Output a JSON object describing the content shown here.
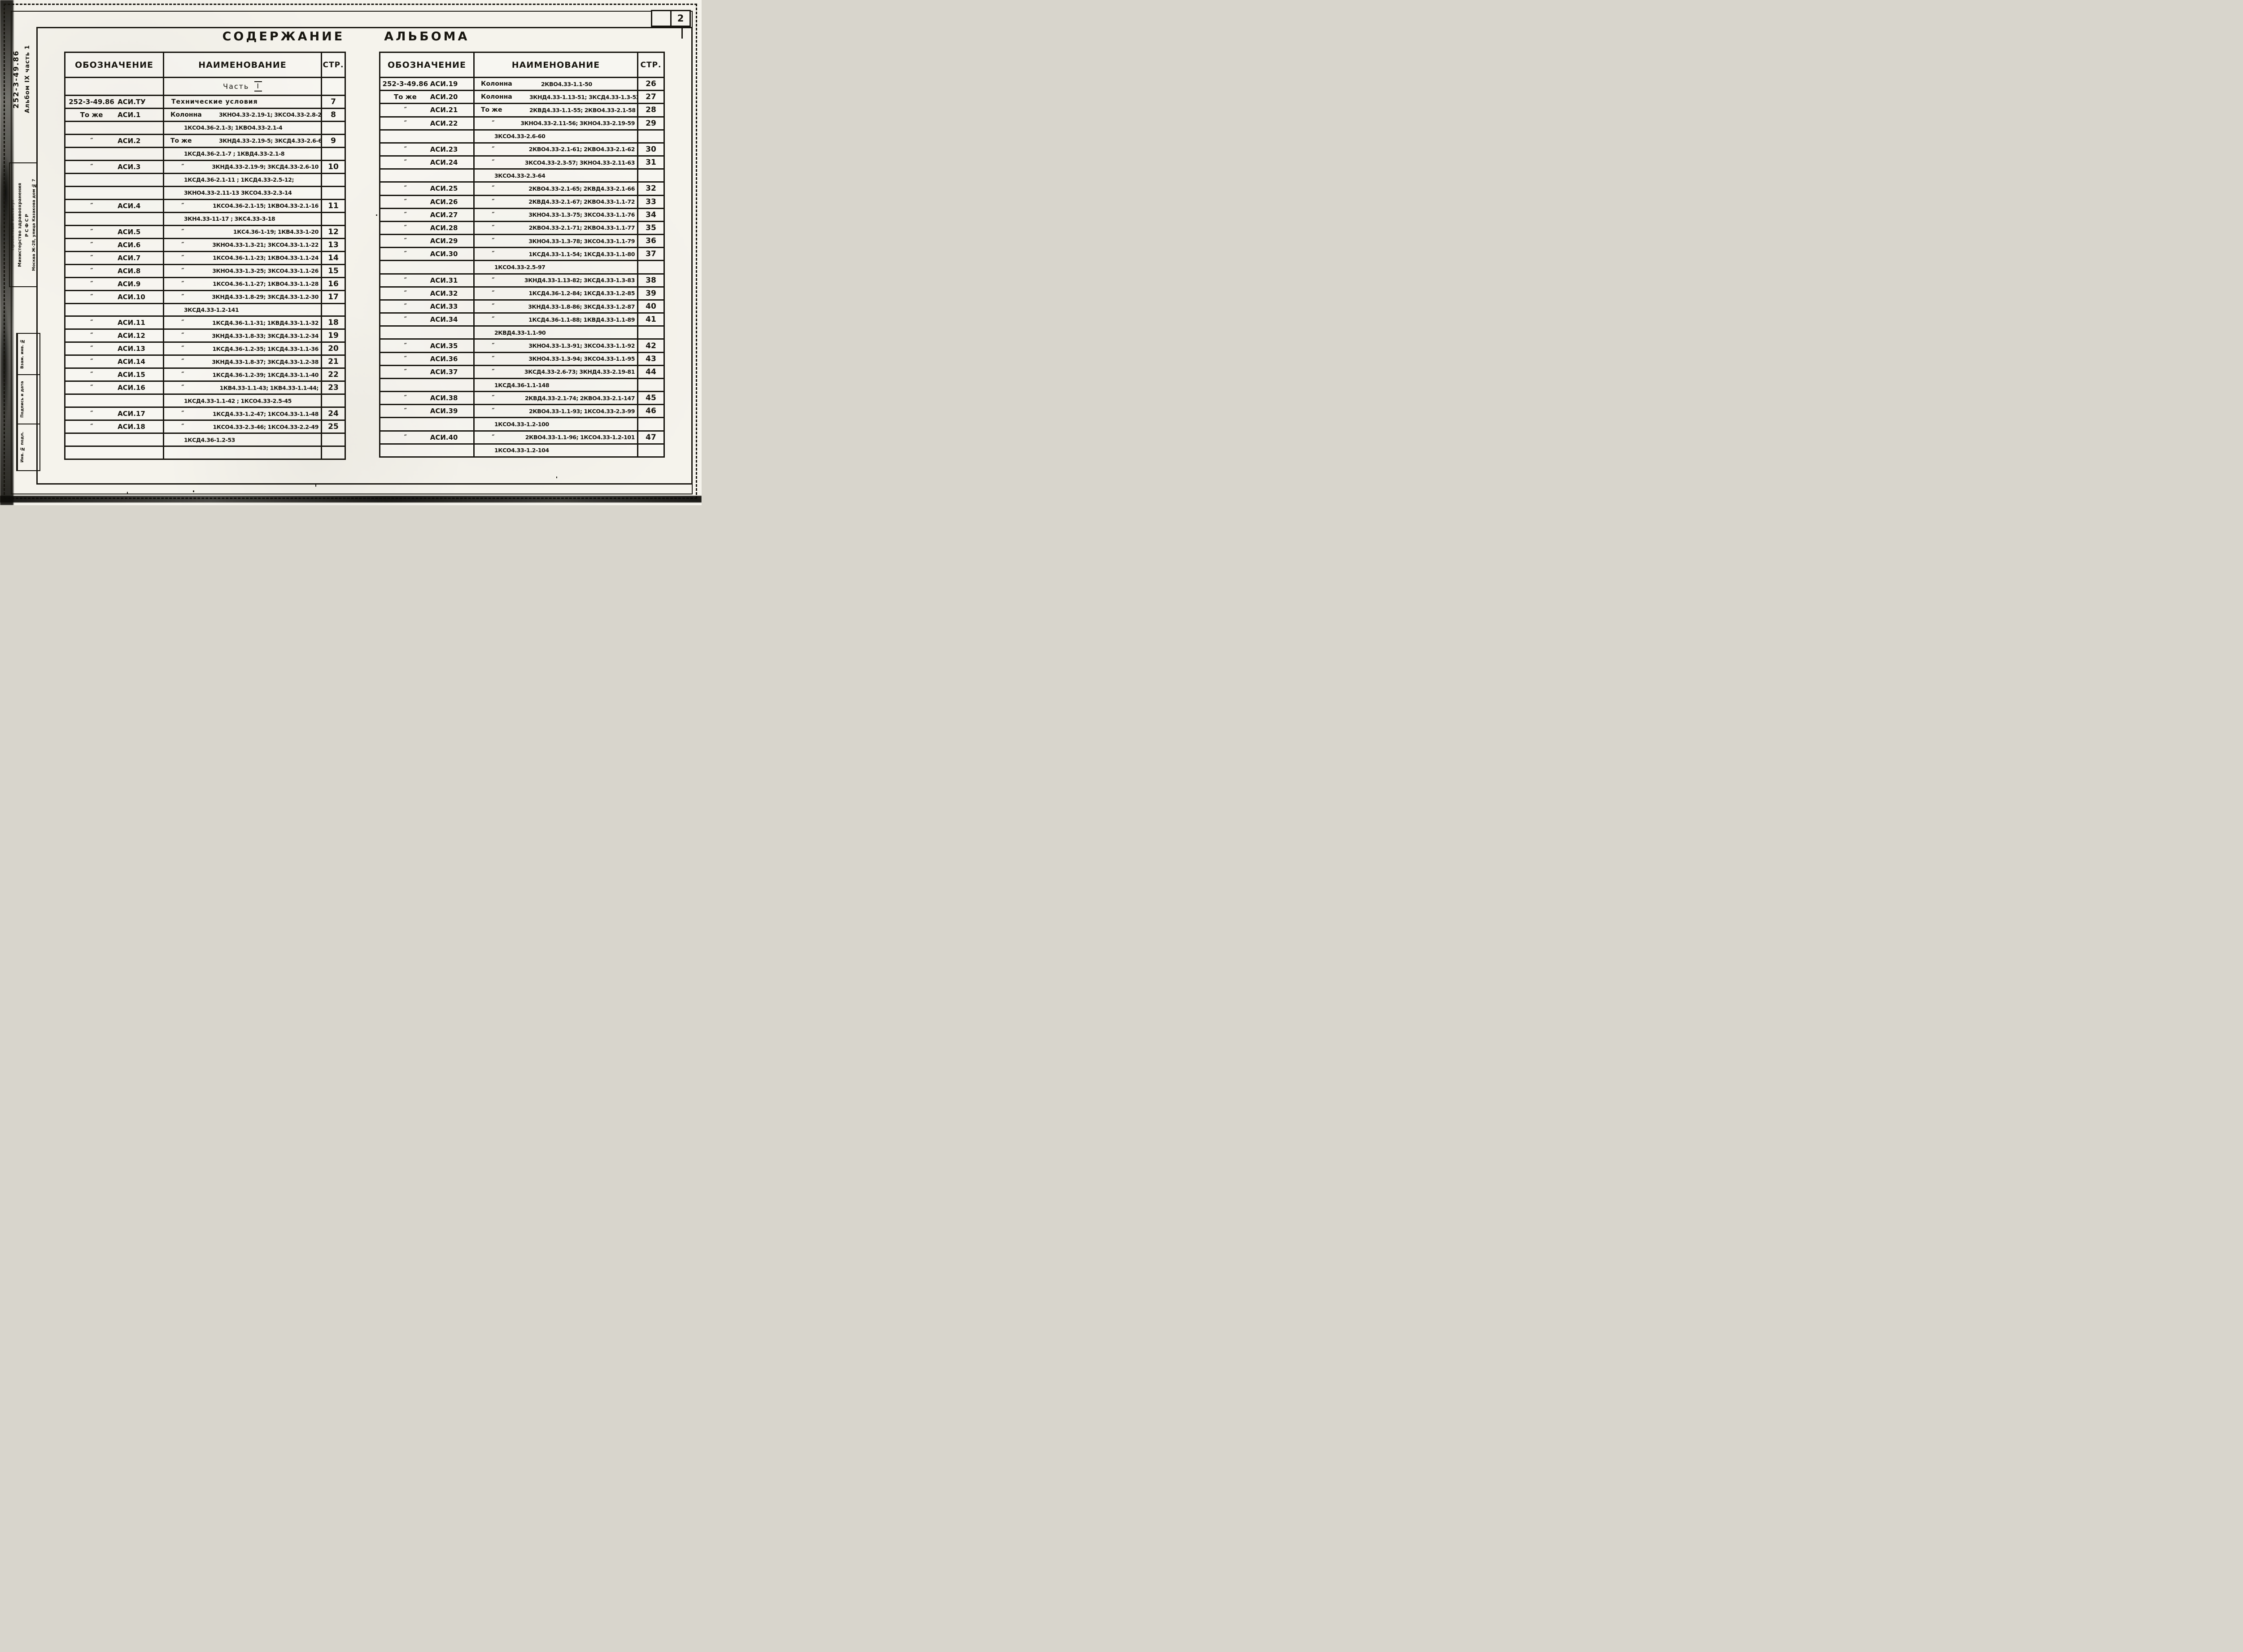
{
  "sheet": {
    "number": "2",
    "title": [
      "Содержание",
      "альбома"
    ]
  },
  "margin": {
    "doc_code": "252-3-49.86",
    "album": "Альбом IX часть 1",
    "institute": "Проектный институт",
    "ministry_line1": "Министерство здравоохранения",
    "ministry_line2": "РСФСР",
    "address": "Москва Ж-28, улица Казакова дом № 7",
    "stamps": [
      "Взам. инв. №",
      "Подпись и дата",
      "Инв. № подл."
    ]
  },
  "tables": {
    "left": {
      "headers": [
        "Обозначение",
        "Наименование",
        "Стр."
      ],
      "section": {
        "word": "Часть",
        "numeral": "I"
      },
      "rows": [
        {
          "d1": "252-3-49.86",
          "d2": "АСИ.ТУ",
          "n1": "Технические условия",
          "n2": "",
          "p": "7"
        },
        {
          "d1": "То же",
          "d2": "АСИ.1",
          "n1": "Колонна",
          "n2": "3КНО4.33-2.19-1; 3КСО4.33-2.8-2",
          "p": "8"
        },
        {
          "d1": "",
          "d2": "",
          "n1": "",
          "n2": "1КСО4.36-2.1-3;  1КВО4.33-2.1-4",
          "p": ""
        },
        {
          "d1": "″",
          "d2": "АСИ.2",
          "n1": "То же",
          "n2": "3КНД4.33-2.19-5; 3КСД4.33-2.6-6",
          "p": "9"
        },
        {
          "d1": "",
          "d2": "",
          "n1": "",
          "n2": "1КСД4.36-2.1-7 ;  1КВД4.33-2.1-8",
          "p": ""
        },
        {
          "d1": "″",
          "d2": "АСИ.3",
          "n1": "″",
          "n2": "3КНД4.33-2.19-9; 3КСД4.33-2.6-10",
          "p": "10"
        },
        {
          "d1": "",
          "d2": "",
          "n1": "",
          "n2": "1КСД4.36-2.1-11 ;  1КСД4.33-2.5-12;",
          "p": ""
        },
        {
          "d1": "",
          "d2": "",
          "n1": "",
          "n2": "3КНО4.33-2.11-13   3КСО4.33-2.3-14",
          "p": ""
        },
        {
          "d1": "″",
          "d2": "АСИ.4",
          "n1": "″",
          "n2": "1КСО4.36-2.1-15; 1КВО4.33-2.1-16",
          "p": "11"
        },
        {
          "d1": "",
          "d2": "",
          "n1": "",
          "n2": "3КН4.33-11-17 ;  3КС4.33-3-18",
          "p": ""
        },
        {
          "d1": "″",
          "d2": "АСИ.5",
          "n1": "″",
          "n2": "1КС4.36-1-19; 1КВ4.33-1-20",
          "p": "12"
        },
        {
          "d1": "″",
          "d2": "АСИ.6",
          "n1": "″",
          "n2": "3КНО4.33-1.3-21; 3КСО4.33-1.1-22",
          "p": "13"
        },
        {
          "d1": "″",
          "d2": "АСИ.7",
          "n1": "″",
          "n2": "1КСО4.36-1.1-23; 1КВО4.33-1.1-24",
          "p": "14"
        },
        {
          "d1": "″",
          "d2": "АСИ.8",
          "n1": "″",
          "n2": "3КНО4.33-1.3-25; 3КСО4.33-1.1-26",
          "p": "15"
        },
        {
          "d1": "″",
          "d2": "АСИ.9",
          "n1": "″",
          "n2": "1КСО4.36-1.1-27; 1КВО4.33-1.1-28",
          "p": "16"
        },
        {
          "d1": "″",
          "d2": "АСИ.10",
          "n1": "″",
          "n2": "3КНД4.33-1.8-29; 3КСД4.33-1.2-30",
          "p": "17"
        },
        {
          "d1": "",
          "d2": "",
          "n1": "",
          "n2": "3КСД4.33-1.2-141",
          "p": ""
        },
        {
          "d1": "″",
          "d2": "АСИ.11",
          "n1": "″",
          "n2": "1КСД4.36-1.1-31; 1КВД4.33-1.1-32",
          "p": "18"
        },
        {
          "d1": "″",
          "d2": "АСИ.12",
          "n1": "″",
          "n2": "3КНД4.33-1.8-33; 3КСД4.33-1.2-34",
          "p": "19"
        },
        {
          "d1": "″",
          "d2": "АСИ.13",
          "n1": "″",
          "n2": "1КСД4.36-1.2-35; 1КСД4.33-1.1-36",
          "p": "20"
        },
        {
          "d1": "″",
          "d2": "АСИ.14",
          "n1": "″",
          "n2": "3КНД4.33-1.8-37; 3КСД4.33-1.2-38",
          "p": "21"
        },
        {
          "d1": "″",
          "d2": "АСИ.15",
          "n1": "″",
          "n2": "1КСД4.36-1.2-39; 1КСД4.33-1.1-40",
          "p": "22"
        },
        {
          "d1": "″",
          "d2": "АСИ.16",
          "n1": "″",
          "n2": "1КВ4.33-1.1-43; 1КВ4.33-1.1-44;",
          "p": "23"
        },
        {
          "d1": "",
          "d2": "",
          "n1": "",
          "n2": "1КСД4.33-1.1-42 ;  1КСО4.33-2.5-45",
          "p": ""
        },
        {
          "d1": "″",
          "d2": "АСИ.17",
          "n1": "″",
          "n2": "1КСД4.33-1.2-47; 1КСО4.33-1.1-48",
          "p": "24"
        },
        {
          "d1": "″",
          "d2": "АСИ.18",
          "n1": "″",
          "n2": "1КСО4.33-2.3-46; 1КСО4.33-2.2-49",
          "p": "25"
        },
        {
          "d1": "",
          "d2": "",
          "n1": "",
          "n2": "1КСД4.36-1.2-53",
          "p": ""
        },
        {
          "d1": "",
          "d2": "",
          "n1": "",
          "n2": "",
          "p": ""
        }
      ]
    },
    "right": {
      "headers": [
        "Обозначение",
        "Наименование",
        "Стр."
      ],
      "rows": [
        {
          "d1": "252-3-49.86",
          "d2": "АСИ.19",
          "n1": "Колонна",
          "n2": "2КВО4.33-1.1-50",
          "p": "26",
          "a": "l"
        },
        {
          "d1": "То же",
          "d2": "АСИ.20",
          "n1": "Колонна",
          "n2": "3КНД4.33-1.13-51; 3КСД4.33-1.3-52",
          "p": "27"
        },
        {
          "d1": "″",
          "d2": "АСИ.21",
          "n1": "То же",
          "n2": "2КВД4.33-1.1-55; 2КВО4.33-2.1-58",
          "p": "28"
        },
        {
          "d1": "″",
          "d2": "АСИ.22",
          "n1": "″",
          "n2": "3КНО4.33-2.11-56; 3КНО4.33-2.19-59",
          "p": "29"
        },
        {
          "d1": "",
          "d2": "",
          "n1": "",
          "n2": "3КСО4.33-2.6-60",
          "p": ""
        },
        {
          "d1": "″",
          "d2": "АСИ.23",
          "n1": "″",
          "n2": "2КВО4.33-2.1-61; 2КВО4.33-2.1-62",
          "p": "30"
        },
        {
          "d1": "″",
          "d2": "АСИ.24",
          "n1": "″",
          "n2": "3КСО4.33-2.3-57; 3КНО4.33-2.11-63",
          "p": "31"
        },
        {
          "d1": "",
          "d2": "",
          "n1": "",
          "n2": "3КСО4.33-2.3-64",
          "p": ""
        },
        {
          "d1": "″",
          "d2": "АСИ.25",
          "n1": "″",
          "n2": "2КВО4.33-2.1-65; 2КВД4.33-2.1-66",
          "p": "32"
        },
        {
          "d1": "″",
          "d2": "АСИ.26",
          "n1": "″",
          "n2": "2КВД4.33-2.1-67; 2КВО4.33-1.1-72",
          "p": "33"
        },
        {
          "d1": "″",
          "d2": "АСИ.27",
          "n1": "″",
          "n2": "3КНО4.33-1.3-75; 3КСО4.33-1.1-76",
          "p": "34"
        },
        {
          "d1": "″",
          "d2": "АСИ.28",
          "n1": "″",
          "n2": "2КВО4.33-2.1-71; 2КВО4.33-1.1-77",
          "p": "35"
        },
        {
          "d1": "″",
          "d2": "АСИ.29",
          "n1": "″",
          "n2": "3КНО4.33-1.3-78; 3КСО4.33-1.1-79",
          "p": "36"
        },
        {
          "d1": "″",
          "d2": "АСИ.30",
          "n1": "″",
          "n2": "1КСД4.33-1.1-54; 1КСД4.33-1.1-80",
          "p": "37"
        },
        {
          "d1": "",
          "d2": "",
          "n1": "",
          "n2": "1КСО4.33-2.5-97",
          "p": ""
        },
        {
          "d1": "″",
          "d2": "АСИ.31",
          "n1": "″",
          "n2": "3КНД4.33-1.13-82; 3КСД4.33-1.3-83",
          "p": "38"
        },
        {
          "d1": "″",
          "d2": "АСИ.32",
          "n1": "″",
          "n2": "1КСД4.36-1.2-84; 1КСД4.33-1.2-85",
          "p": "39"
        },
        {
          "d1": "″",
          "d2": "АСИ.33",
          "n1": "″",
          "n2": "3КНД4.33-1.8-86; 3КСД4.33-1.2-87",
          "p": "40"
        },
        {
          "d1": "″",
          "d2": "АСИ.34",
          "n1": "″",
          "n2": "1КСД4.36-1.1-88; 1КВД4.33-1.1-89",
          "p": "41"
        },
        {
          "d1": "",
          "d2": "",
          "n1": "",
          "n2": "2КВД4.33-1.1-90",
          "p": ""
        },
        {
          "d1": "″",
          "d2": "АСИ.35",
          "n1": "″",
          "n2": "3КНО4.33-1.3-91; 3КСО4.33-1.1-92",
          "p": "42"
        },
        {
          "d1": "″",
          "d2": "АСИ.36",
          "n1": "″",
          "n2": "3КНО4.33-1.3-94; 3КСО4.33-1.1-95",
          "p": "43"
        },
        {
          "d1": "″",
          "d2": "АСИ.37",
          "n1": "″",
          "n2": "3КСД4.33-2.6-73; 3КНД4.33-2.19-81",
          "p": "44"
        },
        {
          "d1": "",
          "d2": "",
          "n1": "",
          "n2": "1КСД4.36-1.1-148",
          "p": ""
        },
        {
          "d1": "″",
          "d2": "АСИ.38",
          "n1": "″",
          "n2": "2КВД4.33-2.1-74; 2КВО4.33-2.1-147",
          "p": "45"
        },
        {
          "d1": "″",
          "d2": "АСИ.39",
          "n1": "″",
          "n2": "2КВО4.33-1.1-93; 1КСО4.33-2.3-99",
          "p": "46"
        },
        {
          "d1": "",
          "d2": "",
          "n1": "",
          "n2": "1КСО4.33-1.2-100",
          "p": ""
        },
        {
          "d1": "″",
          "d2": "АСИ.40",
          "n1": "″",
          "n2": "2КВО4.33-1.1-96; 1КСО4.33-1.2-101",
          "p": "47"
        },
        {
          "d1": "",
          "d2": "",
          "n1": "",
          "n2": "1КСО4.33-1.2-104",
          "p": ""
        }
      ]
    }
  }
}
